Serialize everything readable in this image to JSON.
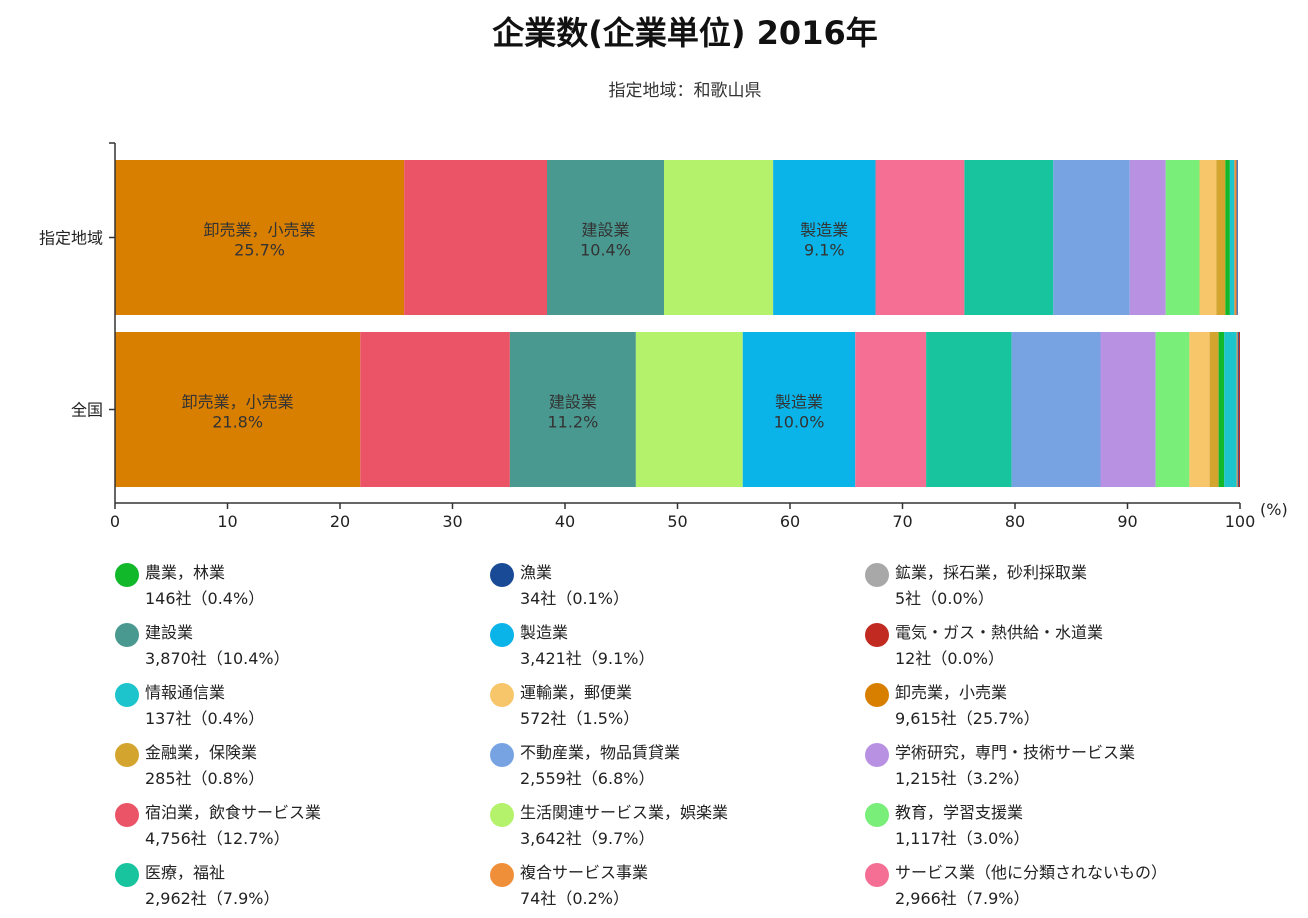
{
  "title": "企業数(企業単位) 2016年",
  "subtitle": "指定地域：和歌山県",
  "chart_data": {
    "type": "bar",
    "orientation": "horizontal",
    "stacked": true,
    "categories": [
      "指定地域",
      "全国"
    ],
    "xlim": [
      0,
      100
    ],
    "xticks": [
      "0",
      "10",
      "20",
      "30",
      "40",
      "50",
      "60",
      "70",
      "80",
      "90",
      "100"
    ],
    "xunit": "(%)",
    "legend_placement": "bottom",
    "series": [
      {
        "name": "卸売業，小売業",
        "color": "#d97f00",
        "values": [
          25.7,
          21.8
        ]
      },
      {
        "name": "宿泊業，飲食サービス業",
        "color": "#eb5466",
        "values": [
          12.7,
          13.3
        ]
      },
      {
        "name": "建設業",
        "color": "#4a9990",
        "values": [
          10.4,
          11.2
        ]
      },
      {
        "name": "生活関連サービス業，娯楽業",
        "color": "#b3f26a",
        "values": [
          9.7,
          9.5
        ]
      },
      {
        "name": "製造業",
        "color": "#0ab4e8",
        "values": [
          9.1,
          10.0
        ]
      },
      {
        "name": "サービス業（他に分類されないもの）",
        "color": "#f56f94",
        "values": [
          7.9,
          6.3
        ]
      },
      {
        "name": "医療，福祉",
        "color": "#18c49e",
        "values": [
          7.9,
          7.6
        ]
      },
      {
        "name": "不動産業，物品賃貸業",
        "color": "#78a3e3",
        "values": [
          6.8,
          7.9
        ]
      },
      {
        "name": "学術研究，専門・技術サービス業",
        "color": "#b891e3",
        "values": [
          3.2,
          4.9
        ]
      },
      {
        "name": "教育，学習支援業",
        "color": "#79ee79",
        "values": [
          3.0,
          3.0
        ]
      },
      {
        "name": "運輸業，郵便業",
        "color": "#f7c66a",
        "values": [
          1.5,
          1.8
        ]
      },
      {
        "name": "金融業，保険業",
        "color": "#d4a52e",
        "values": [
          0.8,
          0.8
        ]
      },
      {
        "name": "農業，林業",
        "color": "#10b82a",
        "values": [
          0.4,
          0.5
        ]
      },
      {
        "name": "情報通信業",
        "color": "#1ec4cc",
        "values": [
          0.4,
          1.1
        ]
      },
      {
        "name": "複合サービス事業",
        "color": "#ef8f3a",
        "values": [
          0.2,
          0.1
        ]
      },
      {
        "name": "漁業",
        "color": "#184a96",
        "values": [
          0.1,
          0.1
        ]
      },
      {
        "name": "電気・ガス・熱供給・水道業",
        "color": "#c02a20",
        "values": [
          0.0,
          0.1
        ]
      },
      {
        "name": "鉱業，採石業，砂利採取業",
        "color": "#a8a8a8",
        "values": [
          0.0,
          0.0
        ]
      }
    ],
    "bar_labels": [
      [
        {
          "name": "卸売業，小売業",
          "value": "25.7%"
        },
        {
          "name": "建設業",
          "value": "10.4%"
        },
        {
          "name": "製造業",
          "value": "9.1%"
        }
      ],
      [
        {
          "name": "卸売業，小売業",
          "value": "21.8%"
        },
        {
          "name": "建設業",
          "value": "11.2%"
        },
        {
          "name": "製造業",
          "value": "10.0%"
        }
      ]
    ]
  },
  "legend": [
    {
      "name": "農業，林業",
      "color": "#10b82a",
      "value": "146社（0.4%）"
    },
    {
      "name": "漁業",
      "color": "#184a96",
      "value": "34社（0.1%）"
    },
    {
      "name": "鉱業，採石業，砂利採取業",
      "color": "#a8a8a8",
      "value": "5社（0.0%）"
    },
    {
      "name": "建設業",
      "color": "#4a9990",
      "value": "3,870社（10.4%）"
    },
    {
      "name": "製造業",
      "color": "#0ab4e8",
      "value": "3,421社（9.1%）"
    },
    {
      "name": "電気・ガス・熱供給・水道業",
      "color": "#c02a20",
      "value": "12社（0.0%）"
    },
    {
      "name": "情報通信業",
      "color": "#1ec4cc",
      "value": "137社（0.4%）"
    },
    {
      "name": "運輸業，郵便業",
      "color": "#f7c66a",
      "value": "572社（1.5%）"
    },
    {
      "name": "卸売業，小売業",
      "color": "#d97f00",
      "value": "9,615社（25.7%）"
    },
    {
      "name": "金融業，保険業",
      "color": "#d4a52e",
      "value": "285社（0.8%）"
    },
    {
      "name": "不動産業，物品賃貸業",
      "color": "#78a3e3",
      "value": "2,559社（6.8%）"
    },
    {
      "name": "学術研究，専門・技術サービス業",
      "color": "#b891e3",
      "value": "1,215社（3.2%）"
    },
    {
      "name": "宿泊業，飲食サービス業",
      "color": "#eb5466",
      "value": "4,756社（12.7%）"
    },
    {
      "name": "生活関連サービス業，娯楽業",
      "color": "#b3f26a",
      "value": "3,642社（9.7%）"
    },
    {
      "name": "教育，学習支援業",
      "color": "#79ee79",
      "value": "1,117社（3.0%）"
    },
    {
      "name": "医療，福祉",
      "color": "#18c49e",
      "value": "2,962社（7.9%）"
    },
    {
      "name": "複合サービス事業",
      "color": "#ef8f3a",
      "value": "74社（0.2%）"
    },
    {
      "name": "サービス業（他に分類されないもの）",
      "color": "#f56f94",
      "value": "2,966社（7.9%）"
    }
  ]
}
